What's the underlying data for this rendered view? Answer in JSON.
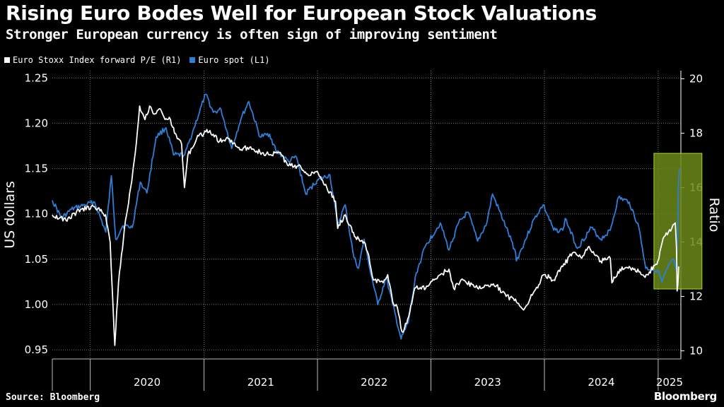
{
  "title": "Rising Euro Bodes Well for European Stock Valuations",
  "subtitle": "Stronger European currency is often sign of improving sentiment",
  "source": "Source: Bloomberg",
  "brand": "Bloomberg",
  "colors": {
    "background": "#000000",
    "pe_series": "#ffffff",
    "euro_series": "#2f7ed8",
    "highlight_border": "#a8d42e",
    "highlight_fill": "#6b8a1a"
  },
  "chart_data": {
    "type": "line",
    "grid": true,
    "left_axis": {
      "label": "US dollars",
      "range": [
        0.94,
        1.258
      ],
      "ticks": [
        0.95,
        1.0,
        1.05,
        1.1,
        1.15,
        1.2,
        1.25
      ],
      "tick_labels": [
        "0.95",
        "1.00",
        "1.05",
        "1.10",
        "1.15",
        "1.20",
        "1.25"
      ]
    },
    "right_axis": {
      "label": "Ratio",
      "range": [
        9.7,
        20.3
      ],
      "ticks": [
        10,
        12,
        14,
        16,
        18,
        20
      ],
      "tick_labels": [
        "10",
        "12",
        "14",
        "16",
        "18",
        "20"
      ]
    },
    "x_axis": {
      "range": [
        "2019-09-01",
        "2025-03-15"
      ],
      "year_labels": [
        "2020",
        "2021",
        "2022",
        "2023",
        "2024",
        "2025"
      ]
    },
    "legend": [
      {
        "label": "Euro Stoxx Index forward P/E (R1)",
        "color": "#ffffff"
      },
      {
        "label": "Euro spot (L1)",
        "color": "#2f7ed8"
      }
    ],
    "highlight": {
      "x_range": [
        "2025-01-01",
        "2025-03-10"
      ]
    },
    "series": [
      {
        "name": "Euro spot (L1)",
        "axis": "left",
        "color": "#2f7ed8",
        "points": [
          [
            "2019-09-01",
            1.115
          ],
          [
            "2019-10-01",
            1.095
          ],
          [
            "2019-11-01",
            1.105
          ],
          [
            "2019-12-15",
            1.11
          ],
          [
            "2020-01-15",
            1.113
          ],
          [
            "2020-02-20",
            1.08
          ],
          [
            "2020-03-09",
            1.142
          ],
          [
            "2020-03-23",
            1.072
          ],
          [
            "2020-04-15",
            1.087
          ],
          [
            "2020-05-15",
            1.085
          ],
          [
            "2020-06-10",
            1.135
          ],
          [
            "2020-07-01",
            1.123
          ],
          [
            "2020-07-31",
            1.185
          ],
          [
            "2020-09-01",
            1.195
          ],
          [
            "2020-09-25",
            1.165
          ],
          [
            "2020-10-31",
            1.165
          ],
          [
            "2020-11-30",
            1.195
          ],
          [
            "2021-01-06",
            1.232
          ],
          [
            "2021-01-31",
            1.212
          ],
          [
            "2021-02-25",
            1.215
          ],
          [
            "2021-03-31",
            1.172
          ],
          [
            "2021-04-30",
            1.205
          ],
          [
            "2021-05-25",
            1.224
          ],
          [
            "2021-06-30",
            1.185
          ],
          [
            "2021-07-31",
            1.188
          ],
          [
            "2021-08-20",
            1.17
          ],
          [
            "2021-09-30",
            1.158
          ],
          [
            "2021-10-25",
            1.163
          ],
          [
            "2021-11-24",
            1.122
          ],
          [
            "2021-12-31",
            1.137
          ],
          [
            "2022-02-10",
            1.143
          ],
          [
            "2022-03-07",
            1.088
          ],
          [
            "2022-03-31",
            1.11
          ],
          [
            "2022-04-28",
            1.052
          ],
          [
            "2022-05-13",
            1.04
          ],
          [
            "2022-05-31",
            1.072
          ],
          [
            "2022-06-15",
            1.045
          ],
          [
            "2022-07-14",
            1.0
          ],
          [
            "2022-08-10",
            1.03
          ],
          [
            "2022-08-31",
            1.0
          ],
          [
            "2022-09-27",
            0.962
          ],
          [
            "2022-10-20",
            0.98
          ],
          [
            "2022-11-15",
            1.035
          ],
          [
            "2022-12-15",
            1.065
          ],
          [
            "2023-01-31",
            1.09
          ],
          [
            "2023-02-28",
            1.06
          ],
          [
            "2023-03-31",
            1.09
          ],
          [
            "2023-04-30",
            1.102
          ],
          [
            "2023-05-31",
            1.07
          ],
          [
            "2023-06-30",
            1.09
          ],
          [
            "2023-07-18",
            1.122
          ],
          [
            "2023-08-31",
            1.085
          ],
          [
            "2023-09-30",
            1.058
          ],
          [
            "2023-10-03",
            1.048
          ],
          [
            "2023-11-30",
            1.095
          ],
          [
            "2023-12-28",
            1.11
          ],
          [
            "2024-01-31",
            1.082
          ],
          [
            "2024-02-29",
            1.082
          ],
          [
            "2024-03-08",
            1.095
          ],
          [
            "2024-04-16",
            1.062
          ],
          [
            "2024-05-31",
            1.085
          ],
          [
            "2024-06-30",
            1.072
          ],
          [
            "2024-07-31",
            1.082
          ],
          [
            "2024-08-26",
            1.118
          ],
          [
            "2024-09-30",
            1.113
          ],
          [
            "2024-10-31",
            1.085
          ],
          [
            "2024-11-22",
            1.04
          ],
          [
            "2024-12-31",
            1.038
          ],
          [
            "2025-01-13",
            1.025
          ],
          [
            "2025-01-31",
            1.04
          ],
          [
            "2025-02-20",
            1.05
          ],
          [
            "2025-02-28",
            1.038
          ],
          [
            "2025-03-05",
            1.08
          ],
          [
            "2025-03-07",
            1.13
          ],
          [
            "2025-03-10",
            1.15
          ]
        ]
      },
      {
        "name": "Euro Stoxx Index forward P/E (R1)",
        "axis": "right",
        "color": "#ffffff",
        "points": [
          [
            "2019-09-01",
            15.0
          ],
          [
            "2019-10-15",
            14.8
          ],
          [
            "2019-12-01",
            15.2
          ],
          [
            "2020-01-15",
            15.3
          ],
          [
            "2020-02-19",
            15.0
          ],
          [
            "2020-03-05",
            14.0
          ],
          [
            "2020-03-16",
            11.2
          ],
          [
            "2020-03-20",
            10.2
          ],
          [
            "2020-04-01",
            12.5
          ],
          [
            "2020-04-20",
            14.5
          ],
          [
            "2020-05-10",
            16.0
          ],
          [
            "2020-05-25",
            17.3
          ],
          [
            "2020-06-08",
            19.0
          ],
          [
            "2020-06-25",
            18.5
          ],
          [
            "2020-07-10",
            19.0
          ],
          [
            "2020-07-25",
            18.7
          ],
          [
            "2020-08-10",
            18.9
          ],
          [
            "2020-08-25",
            18.6
          ],
          [
            "2020-09-15",
            18.5
          ],
          [
            "2020-09-28",
            18.0
          ],
          [
            "2020-10-10",
            17.8
          ],
          [
            "2020-10-21",
            17.6
          ],
          [
            "2020-10-30",
            16.0
          ],
          [
            "2020-11-10",
            17.2
          ],
          [
            "2020-12-15",
            17.9
          ],
          [
            "2021-01-20",
            18.1
          ],
          [
            "2021-02-20",
            17.7
          ],
          [
            "2021-03-20",
            17.8
          ],
          [
            "2021-04-30",
            17.4
          ],
          [
            "2021-05-31",
            17.5
          ],
          [
            "2021-06-30",
            17.3
          ],
          [
            "2021-07-31",
            17.2
          ],
          [
            "2021-08-31",
            17.3
          ],
          [
            "2021-09-30",
            16.8
          ],
          [
            "2021-10-31",
            16.8
          ],
          [
            "2021-11-30",
            16.5
          ],
          [
            "2021-12-31",
            16.6
          ],
          [
            "2022-01-31",
            16.0
          ],
          [
            "2022-02-28",
            15.5
          ],
          [
            "2022-03-07",
            14.5
          ],
          [
            "2022-03-31",
            15.0
          ],
          [
            "2022-04-30",
            14.2
          ],
          [
            "2022-05-31",
            14.0
          ],
          [
            "2022-06-15",
            13.5
          ],
          [
            "2022-06-30",
            12.6
          ],
          [
            "2022-07-31",
            12.5
          ],
          [
            "2022-08-15",
            12.8
          ],
          [
            "2022-08-31",
            11.8
          ],
          [
            "2022-09-15",
            11.6
          ],
          [
            "2022-09-30",
            10.7
          ],
          [
            "2022-10-15",
            11.0
          ],
          [
            "2022-11-10",
            12.3
          ],
          [
            "2022-12-15",
            12.3
          ],
          [
            "2023-01-31",
            12.8
          ],
          [
            "2023-02-28",
            13.0
          ],
          [
            "2023-03-15",
            12.3
          ],
          [
            "2023-04-15",
            12.6
          ],
          [
            "2023-05-31",
            12.3
          ],
          [
            "2023-06-30",
            12.4
          ],
          [
            "2023-07-31",
            12.4
          ],
          [
            "2023-08-31",
            12.0
          ],
          [
            "2023-09-30",
            11.9
          ],
          [
            "2023-10-26",
            11.5
          ],
          [
            "2023-11-30",
            12.2
          ],
          [
            "2023-12-31",
            12.8
          ],
          [
            "2024-01-31",
            12.6
          ],
          [
            "2024-02-29",
            13.1
          ],
          [
            "2024-03-31",
            13.6
          ],
          [
            "2024-04-30",
            13.4
          ],
          [
            "2024-05-20",
            13.8
          ],
          [
            "2024-06-30",
            13.3
          ],
          [
            "2024-07-31",
            13.4
          ],
          [
            "2024-08-05",
            12.5
          ],
          [
            "2024-08-31",
            13.0
          ],
          [
            "2024-09-30",
            13.1
          ],
          [
            "2024-10-31",
            12.9
          ],
          [
            "2024-11-20",
            12.7
          ],
          [
            "2024-12-31",
            13.3
          ],
          [
            "2025-01-20",
            14.2
          ],
          [
            "2025-02-10",
            14.4
          ],
          [
            "2025-02-25",
            14.7
          ],
          [
            "2025-03-01",
            13.8
          ],
          [
            "2025-03-03",
            12.2
          ],
          [
            "2025-03-05",
            12.4
          ],
          [
            "2025-03-08",
            13.1
          ]
        ]
      }
    ]
  }
}
